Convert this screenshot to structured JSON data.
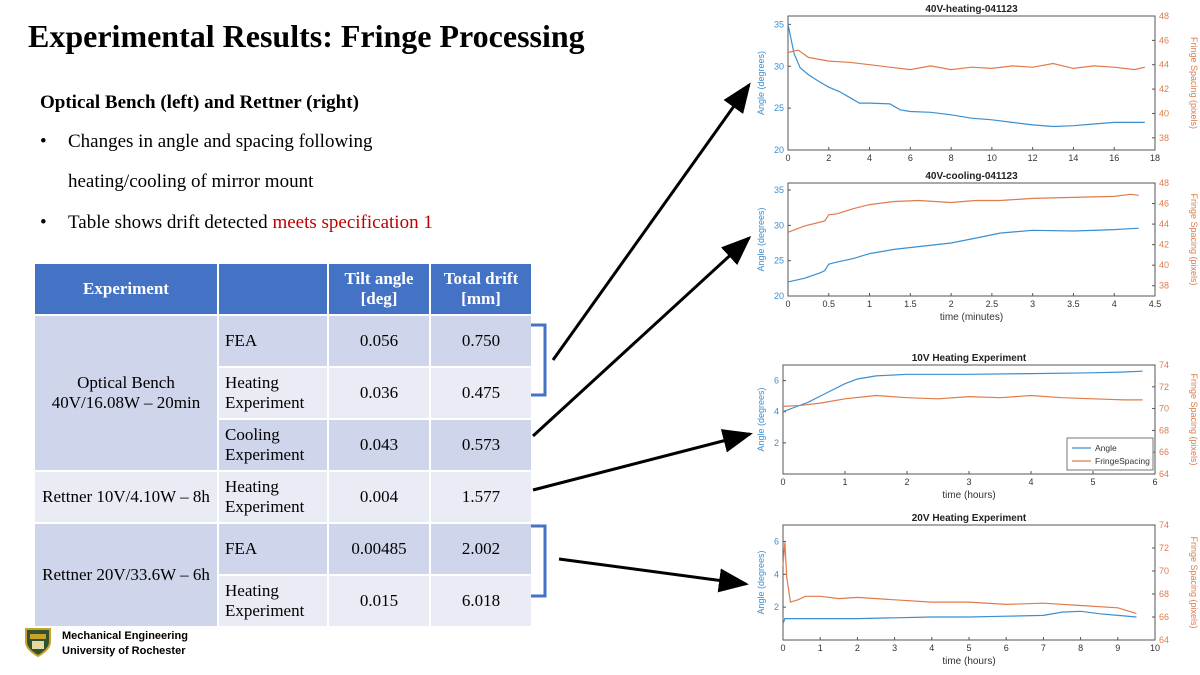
{
  "slide": {
    "title": "Experimental Results: Fringe Processing",
    "subheading": "Optical Bench (left) and Rettner (right)",
    "bullets": [
      {
        "text": "Changes in angle and spacing following",
        "text2": "heating/cooling of mirror mount"
      },
      {
        "text": "Table shows drift detected ",
        "highlight": "meets specification 1"
      }
    ],
    "bullet_symbol": "•"
  },
  "table": {
    "headers": [
      "Experiment",
      "",
      "Tilt angle [deg]",
      "Total drift [mm]"
    ],
    "groups": [
      {
        "name": "Optical Bench 40V/16.08W – 20min",
        "rows": [
          {
            "sub": "FEA",
            "tilt": "0.056",
            "drift": "0.750"
          },
          {
            "sub": "Heating Experiment",
            "tilt": "0.036",
            "drift": "0.475"
          },
          {
            "sub": "Cooling Experiment",
            "tilt": "0.043",
            "drift": "0.573"
          }
        ]
      },
      {
        "name": "Rettner 10V/4.10W – 8h",
        "rows": [
          {
            "sub": "Heating Experiment",
            "tilt": "0.004",
            "drift": "1.577"
          }
        ]
      },
      {
        "name": "Rettner 20V/33.6W – 6h",
        "rows": [
          {
            "sub": "FEA",
            "tilt": "0.00485",
            "drift": "2.002"
          },
          {
            "sub": "Heating Experiment",
            "tilt": "0.015",
            "drift": "6.018"
          }
        ]
      }
    ]
  },
  "footer": {
    "line1": "Mechanical Engineering",
    "line2": "University of Rochester",
    "logo_icon": "university-shield-icon"
  },
  "colors": {
    "angle": "#3b8fd0",
    "fringe": "#e07b4a",
    "table_header": "#4472c4",
    "row_dark": "#cfd5ea",
    "row_light": "#e9ebf5",
    "arrow": "#000000",
    "bracket": "#4472c4",
    "highlight_text": "#c00000"
  },
  "chart_data": [
    {
      "type": "line",
      "title": "40V-heating-041123",
      "xlabel": "",
      "ylabel": "Angle (degrees)",
      "y2label": "Fringe Spacing (pixels)",
      "xlim": [
        0,
        18
      ],
      "ylim": [
        20,
        36
      ],
      "y2lim": [
        37,
        48
      ],
      "xticks": [
        0,
        2,
        4,
        6,
        8,
        10,
        12,
        14,
        16,
        18
      ],
      "yticks": [
        20,
        25,
        30,
        35
      ],
      "y2ticks": [
        38,
        40,
        42,
        44,
        46,
        48
      ],
      "series": [
        {
          "axis": "left",
          "x": [
            0,
            0.3,
            0.6,
            1,
            1.5,
            2,
            2.5,
            3,
            3.5,
            4,
            5,
            5.5,
            6,
            7,
            8,
            9,
            10,
            11,
            12,
            13,
            14,
            15,
            16,
            17.5
          ],
          "values": [
            35,
            31.5,
            29.8,
            29,
            28.2,
            27.5,
            27,
            26.3,
            25.6,
            25.6,
            25.5,
            24.8,
            24.6,
            24.5,
            24.2,
            23.8,
            23.6,
            23.3,
            23,
            22.8,
            22.9,
            23.1,
            23.3,
            23.3
          ]
        },
        {
          "axis": "right",
          "x": [
            0,
            0.5,
            1,
            2,
            3,
            4,
            5,
            6,
            7,
            8,
            9,
            10,
            11,
            12,
            13,
            14,
            15,
            16,
            17,
            17.5
          ],
          "values": [
            45,
            45.2,
            44.6,
            44.3,
            44.2,
            44,
            43.8,
            43.6,
            43.9,
            43.6,
            43.8,
            43.7,
            43.9,
            43.8,
            44.1,
            43.7,
            43.9,
            43.8,
            43.6,
            43.8
          ]
        }
      ]
    },
    {
      "type": "line",
      "title": "40V-cooling-041123",
      "xlabel": "time (minutes)",
      "ylabel": "Angle (degrees)",
      "y2label": "Fringe Spacing (pixels)",
      "xlim": [
        0,
        4.5
      ],
      "ylim": [
        20,
        36
      ],
      "y2lim": [
        37,
        48
      ],
      "xticks": [
        0,
        0.5,
        1,
        1.5,
        2,
        2.5,
        3,
        3.5,
        4,
        4.5
      ],
      "yticks": [
        20,
        25,
        30,
        35
      ],
      "y2ticks": [
        38,
        40,
        42,
        44,
        46,
        48
      ],
      "series": [
        {
          "axis": "left",
          "x": [
            0,
            0.2,
            0.4,
            0.45,
            0.5,
            0.6,
            0.8,
            1,
            1.3,
            1.6,
            2,
            2.3,
            2.6,
            3,
            3.5,
            4,
            4.3
          ],
          "values": [
            22,
            22.5,
            23.3,
            23.6,
            24.5,
            24.8,
            25.3,
            26,
            26.6,
            27,
            27.5,
            28.2,
            28.9,
            29.3,
            29.2,
            29.4,
            29.6
          ]
        },
        {
          "axis": "right",
          "x": [
            0,
            0.2,
            0.4,
            0.45,
            0.5,
            0.6,
            0.8,
            1,
            1.3,
            1.6,
            2,
            2.3,
            2.6,
            3,
            3.5,
            4,
            4.2,
            4.3
          ],
          "values": [
            43.2,
            43.8,
            44.2,
            44.3,
            44.9,
            45.0,
            45.5,
            45.9,
            46.2,
            46.3,
            46.1,
            46.3,
            46.3,
            46.5,
            46.6,
            46.7,
            46.9,
            46.8
          ]
        }
      ]
    },
    {
      "type": "line",
      "title": "10V Heating Experiment",
      "xlabel": "time (hours)",
      "ylabel": "Angle (degrees)",
      "y2label": "Fringe Spacing (pixels)",
      "xlim": [
        0,
        6
      ],
      "ylim": [
        0,
        7
      ],
      "y2lim": [
        64,
        74
      ],
      "xticks": [
        0,
        1,
        2,
        3,
        4,
        5,
        6
      ],
      "yticks": [
        2,
        4,
        6
      ],
      "y2ticks": [
        64,
        66,
        68,
        70,
        72,
        74
      ],
      "legend": {
        "position": "bottom-right",
        "entries": [
          "Angle",
          "FringeSpacing"
        ]
      },
      "series": [
        {
          "name": "Angle",
          "axis": "left",
          "x": [
            0,
            0.2,
            0.4,
            0.6,
            0.8,
            1,
            1.2,
            1.5,
            2,
            3,
            4,
            5,
            5.5,
            5.8
          ],
          "values": [
            4,
            4.3,
            4.6,
            5,
            5.4,
            5.8,
            6.1,
            6.3,
            6.4,
            6.4,
            6.45,
            6.5,
            6.55,
            6.6
          ]
        },
        {
          "name": "FringeSpacing",
          "axis": "right",
          "x": [
            0,
            0.3,
            0.6,
            1,
            1.5,
            2,
            2.5,
            3,
            3.5,
            4,
            4.5,
            5,
            5.5,
            5.8
          ],
          "values": [
            70.2,
            70.3,
            70.5,
            70.9,
            71.2,
            71.0,
            70.9,
            71.1,
            71.0,
            71.2,
            71.0,
            70.9,
            70.8,
            70.8
          ]
        }
      ]
    },
    {
      "type": "line",
      "title": "20V Heating Experiment",
      "xlabel": "time (hours)",
      "ylabel": "Angle (degrees)",
      "y2label": "Fringe Spacing (pixels)",
      "xlim": [
        0,
        10
      ],
      "ylim": [
        0,
        7
      ],
      "y2lim": [
        64,
        74
      ],
      "xticks": [
        0,
        1,
        2,
        3,
        4,
        5,
        6,
        7,
        8,
        9,
        10
      ],
      "yticks": [
        2,
        4,
        6
      ],
      "y2ticks": [
        64,
        66,
        68,
        70,
        72,
        74
      ],
      "series": [
        {
          "axis": "left",
          "x": [
            0,
            0.05,
            0.2,
            1,
            2,
            3,
            4,
            5,
            6,
            7,
            7.5,
            8,
            8.5,
            9,
            9.5
          ],
          "values": [
            1.0,
            1.3,
            1.3,
            1.3,
            1.3,
            1.35,
            1.4,
            1.4,
            1.45,
            1.5,
            1.7,
            1.75,
            1.6,
            1.5,
            1.4
          ]
        },
        {
          "axis": "right",
          "x": [
            0,
            0.05,
            0.1,
            0.2,
            0.4,
            0.6,
            1,
            1.5,
            2,
            3,
            4,
            5,
            6,
            7,
            8,
            9,
            9.5
          ],
          "values": [
            70.5,
            72.5,
            69.5,
            67.3,
            67.5,
            67.8,
            67.8,
            67.6,
            67.7,
            67.5,
            67.3,
            67.3,
            67.1,
            67.2,
            67.0,
            66.8,
            66.3
          ]
        }
      ]
    }
  ]
}
